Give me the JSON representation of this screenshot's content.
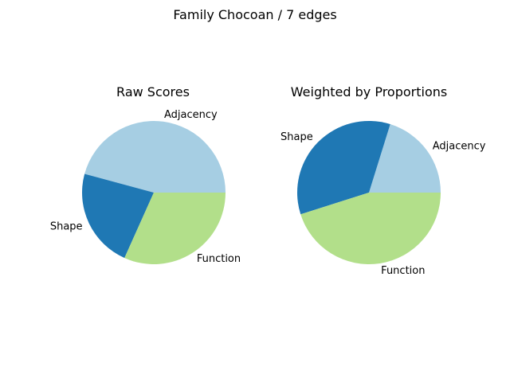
{
  "figure": {
    "suptitle": "Family Chocoan / 7 edges"
  },
  "chart_data": [
    {
      "type": "pie",
      "title": "Raw Scores",
      "labels": [
        "Adjacency",
        "Shape",
        "Function"
      ],
      "values": [
        45.8,
        22.5,
        31.7
      ],
      "colors": [
        "#a6cee3",
        "#1f78b4",
        "#b2df8a"
      ],
      "start_angle_deg": 0,
      "direction": "counterclockwise"
    },
    {
      "type": "pie",
      "title": "Weighted by Proportions",
      "labels": [
        "Adjacency",
        "Shape",
        "Function"
      ],
      "values": [
        20.2,
        34.7,
        45.1
      ],
      "colors": [
        "#a6cee3",
        "#1f78b4",
        "#b2df8a"
      ],
      "start_angle_deg": 0,
      "direction": "counterclockwise"
    }
  ]
}
